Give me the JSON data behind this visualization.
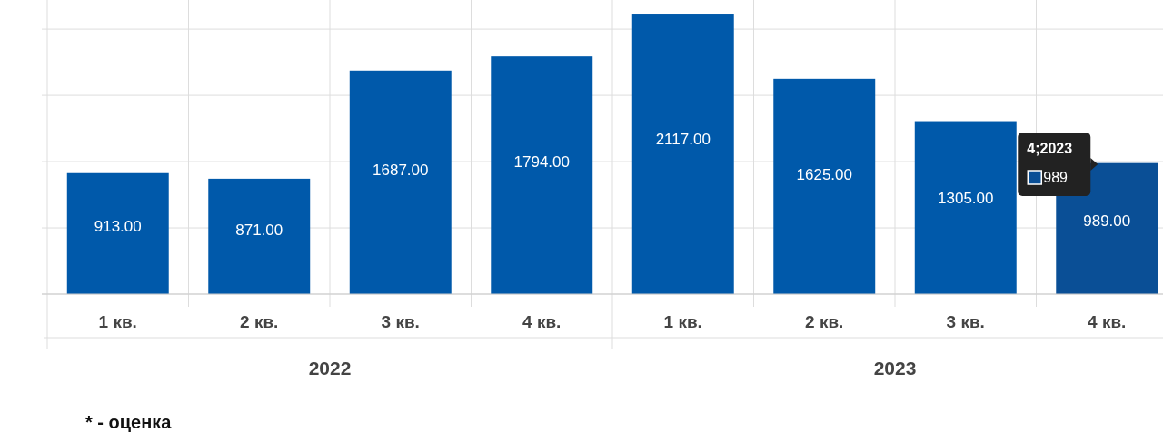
{
  "chart_data": {
    "type": "bar",
    "categories": [
      "1 кв.",
      "2 кв.",
      "3 кв.",
      "4 кв.",
      "1 кв.",
      "2 кв.",
      "3 кв.",
      "4 кв."
    ],
    "values": [
      913,
      871,
      1687,
      1794,
      2117,
      1625,
      1305,
      989
    ],
    "colors": [
      "#0059aa",
      "#0059aa",
      "#0059aa",
      "#0059aa",
      "#0059aa",
      "#0059aa",
      "#0059aa",
      "#0a4f96"
    ],
    "value_labels": [
      "913.00",
      "871.00",
      "1687.00",
      "1794.00",
      "2117.00",
      "1625.00",
      "1305.00",
      "989.00"
    ],
    "ylim": [
      0,
      2220
    ],
    "yticks": [
      {
        "value": 0,
        "label": null
      },
      {
        "value": 500,
        "label": null
      },
      {
        "value": 1000,
        "label": null
      },
      {
        "value": 1500,
        "label": null
      },
      {
        "value": 2000,
        "label": null
      }
    ],
    "tick_labels": "x",
    "grid": true,
    "annotations": [
      "2022",
      "2023",
      "4;2023",
      "989",
      "* - оценка"
    ]
  }
}
